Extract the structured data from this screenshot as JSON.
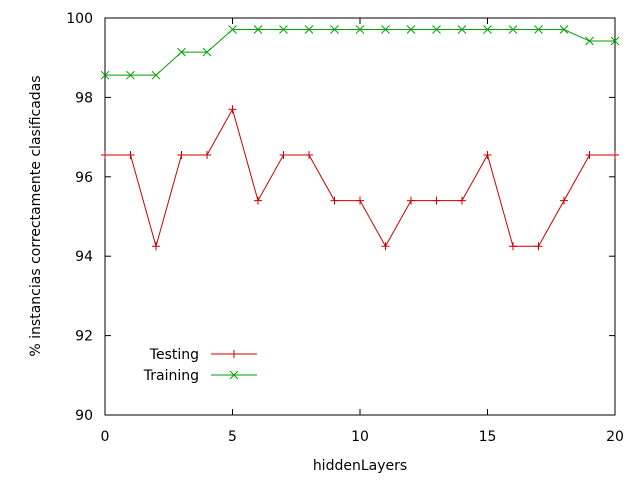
{
  "chart_data": {
    "type": "line",
    "title": "",
    "xlabel": "hiddenLayers",
    "ylabel": "% instancias correctamente clasificadas",
    "xlim": [
      0,
      20
    ],
    "ylim": [
      90,
      100
    ],
    "xticks": [
      0,
      5,
      10,
      15,
      20
    ],
    "yticks": [
      90,
      92,
      94,
      96,
      98,
      100
    ],
    "grid": false,
    "legend_position": "bottom-left",
    "x": [
      0,
      1,
      2,
      3,
      4,
      5,
      6,
      7,
      8,
      9,
      10,
      11,
      12,
      13,
      14,
      15,
      16,
      17,
      18,
      19,
      20
    ],
    "series": [
      {
        "name": "Testing",
        "color": "#cc0000",
        "marker": "plus",
        "values": [
          96.55,
          96.55,
          94.25,
          96.55,
          96.55,
          97.7,
          95.4,
          96.55,
          96.55,
          95.4,
          95.4,
          94.25,
          95.4,
          95.4,
          95.4,
          96.55,
          94.25,
          94.25,
          95.4,
          96.55,
          96.55
        ]
      },
      {
        "name": "Training",
        "color": "#00a000",
        "marker": "cross",
        "values": [
          98.56,
          98.56,
          98.56,
          99.14,
          99.14,
          99.71,
          99.71,
          99.71,
          99.71,
          99.71,
          99.71,
          99.71,
          99.71,
          99.71,
          99.71,
          99.71,
          99.71,
          99.71,
          99.71,
          99.42,
          99.42
        ]
      }
    ]
  }
}
